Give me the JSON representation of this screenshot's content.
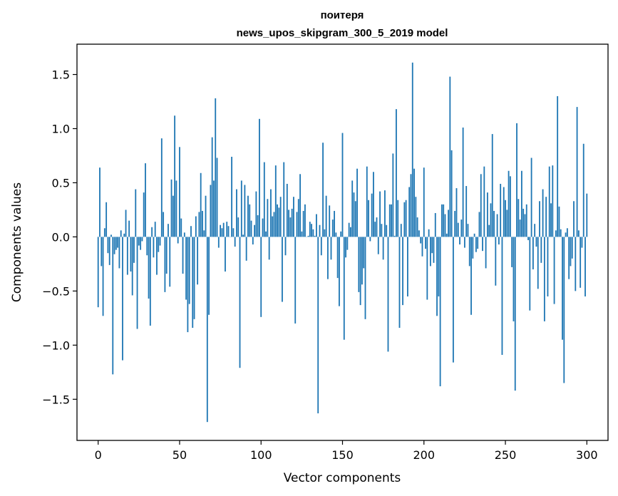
{
  "chart_data": {
    "type": "bar",
    "title": "поитеря",
    "subtitle": "news_upos_skipgram_300_5_2019 model",
    "xlabel": "Vector components",
    "ylabel": "Components values",
    "xlim": [
      -13,
      313
    ],
    "ylim": [
      -1.88,
      1.78
    ],
    "xticks": [
      0,
      50,
      100,
      150,
      200,
      250,
      300
    ],
    "yticks": [
      -1.5,
      -1.0,
      -0.5,
      0.0,
      0.5,
      1.0,
      1.5
    ],
    "ytick_labels": [
      "−1.5",
      "−1.0",
      "−0.5",
      "0.0",
      "0.5",
      "1.0",
      "1.5"
    ],
    "bar_color": "#1f77b4",
    "grid": false,
    "values": [
      -0.65,
      0.64,
      -0.27,
      -0.73,
      0.08,
      0.32,
      -0.15,
      -0.26,
      0.02,
      -1.27,
      -0.16,
      -0.12,
      -0.1,
      -0.29,
      0.06,
      -1.14,
      0.03,
      0.25,
      -0.35,
      0.15,
      -0.32,
      -0.54,
      -0.24,
      0.44,
      -0.85,
      -0.08,
      -0.12,
      -0.04,
      0.41,
      0.68,
      -0.17,
      -0.57,
      -0.82,
      0.09,
      -0.19,
      0.14,
      -0.35,
      -0.14,
      -0.08,
      0.91,
      0.23,
      -0.51,
      -0.34,
      0.12,
      -0.46,
      0.53,
      0.38,
      1.12,
      0.52,
      -0.06,
      0.83,
      0.17,
      -0.34,
      0.04,
      -0.58,
      -0.88,
      -0.62,
      0.1,
      -0.84,
      -0.76,
      0.19,
      -0.44,
      0.23,
      0.59,
      0.24,
      0.06,
      0.38,
      -1.71,
      -0.72,
      0.48,
      0.92,
      0.52,
      1.28,
      0.73,
      -0.1,
      0.11,
      0.08,
      0.13,
      -0.32,
      0.14,
      0.1,
      0.0,
      0.74,
      0.08,
      -0.09,
      0.44,
      0.18,
      -1.21,
      0.52,
      0.02,
      0.48,
      -0.22,
      0.38,
      0.3,
      0.15,
      -0.07,
      0.11,
      0.42,
      0.2,
      1.09,
      -0.74,
      0.17,
      0.69,
      0.05,
      0.35,
      -0.21,
      0.44,
      0.19,
      0.23,
      0.66,
      0.3,
      0.27,
      0.37,
      -0.6,
      0.69,
      -0.17,
      0.49,
      0.25,
      0.18,
      0.26,
      0.37,
      -0.8,
      0.23,
      0.35,
      0.58,
      0.05,
      0.24,
      0.3,
      0.0,
      0.01,
      0.14,
      0.12,
      0.07,
      0.01,
      0.21,
      -1.63,
      0.11,
      -0.17,
      0.87,
      0.07,
      0.38,
      -0.39,
      0.29,
      -0.21,
      0.16,
      0.24,
      0.04,
      -0.38,
      -0.64,
      0.05,
      0.96,
      -0.95,
      -0.19,
      -0.12,
      0.13,
      0.09,
      0.52,
      0.41,
      0.33,
      0.63,
      -0.51,
      -0.63,
      -0.44,
      -0.29,
      -0.76,
      0.65,
      0.34,
      -0.04,
      0.4,
      0.6,
      0.14,
      0.18,
      -0.16,
      0.42,
      0.12,
      -0.21,
      0.43,
      0.11,
      -1.06,
      0.3,
      0.3,
      0.77,
      0.01,
      1.18,
      0.34,
      -0.84,
      0.12,
      -0.63,
      0.32,
      0.34,
      -0.55,
      0.46,
      0.58,
      1.61,
      0.63,
      0.37,
      0.18,
      0.06,
      -0.06,
      -0.18,
      0.64,
      -0.11,
      -0.58,
      0.07,
      -0.27,
      -0.15,
      -0.24,
      0.22,
      -0.73,
      -0.55,
      -1.38,
      0.3,
      0.3,
      0.21,
      0.03,
      0.25,
      1.48,
      0.8,
      -1.16,
      0.24,
      0.45,
      0.13,
      -0.07,
      0.16,
      1.01,
      -0.1,
      0.47,
      0.12,
      -0.27,
      -0.72,
      -0.2,
      0.03,
      -0.14,
      -0.11,
      0.23,
      0.58,
      -0.13,
      0.65,
      -0.29,
      0.41,
      0.11,
      0.31,
      0.95,
      0.24,
      -0.45,
      0.21,
      -0.07,
      0.49,
      -1.09,
      0.46,
      0.34,
      0.25,
      0.61,
      0.56,
      -0.28,
      -0.78,
      -1.42,
      1.05,
      0.35,
      0.16,
      0.61,
      0.26,
      0.21,
      0.3,
      -0.03,
      -0.68,
      0.73,
      -0.3,
      0.12,
      -0.09,
      -0.48,
      0.33,
      -0.24,
      0.44,
      -0.78,
      0.37,
      -0.55,
      0.65,
      0.31,
      0.66,
      -0.62,
      0.06,
      1.3,
      0.28,
      0.07,
      -0.95,
      -1.35,
      0.04,
      0.08,
      -0.39,
      -0.27,
      -0.2,
      0.33,
      -0.5,
      1.2,
      0.06,
      -0.47,
      -0.1,
      0.86,
      -0.55,
      0.4
    ]
  }
}
